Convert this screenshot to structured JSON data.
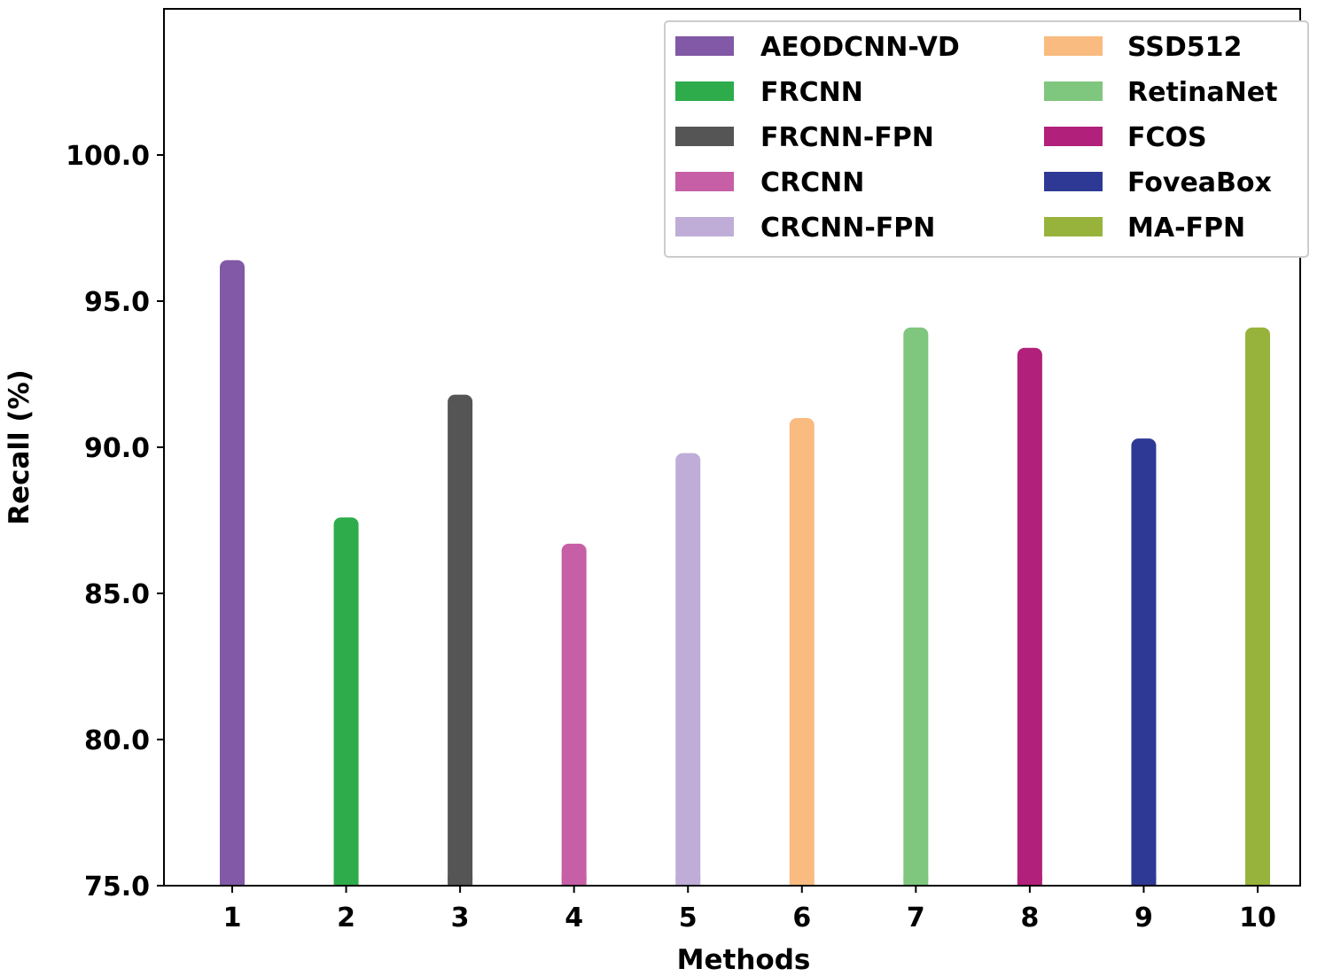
{
  "chart_data": {
    "type": "bar",
    "title": "",
    "xlabel": "Methods",
    "ylabel": "Recall (%)",
    "ylim": [
      75.0,
      105.0
    ],
    "yticks": [
      "75.0",
      "80.0",
      "85.0",
      "90.0",
      "95.0",
      "100.0"
    ],
    "categories": [
      "1",
      "2",
      "3",
      "4",
      "5",
      "6",
      "7",
      "8",
      "9",
      "10"
    ],
    "series": [
      {
        "name": "AEODCNN-VD",
        "color": "#8159a6",
        "values": [
          96.4,
          null,
          null,
          null,
          null,
          null,
          null,
          null,
          null,
          null
        ]
      },
      {
        "name": "FRCNN",
        "color": "#2eac4b",
        "values": [
          null,
          87.6,
          null,
          null,
          null,
          null,
          null,
          null,
          null,
          null
        ]
      },
      {
        "name": "FRCNN-FPN",
        "color": "#555555",
        "values": [
          null,
          null,
          91.8,
          null,
          null,
          null,
          null,
          null,
          null,
          null
        ]
      },
      {
        "name": "CRCNN",
        "color": "#c65fa6",
        "values": [
          null,
          null,
          null,
          86.7,
          null,
          null,
          null,
          null,
          null,
          null
        ]
      },
      {
        "name": "CRCNN-FPN",
        "color": "#bfadd7",
        "values": [
          null,
          null,
          null,
          null,
          89.8,
          null,
          null,
          null,
          null,
          null
        ]
      },
      {
        "name": "SSD512",
        "color": "#f9bb80",
        "values": [
          null,
          null,
          null,
          null,
          null,
          91.0,
          null,
          null,
          null,
          null
        ]
      },
      {
        "name": "RetinaNet",
        "color": "#7fc67e",
        "values": [
          null,
          null,
          null,
          null,
          null,
          null,
          94.1,
          null,
          null,
          null
        ]
      },
      {
        "name": "FCOS",
        "color": "#b1207a",
        "values": [
          null,
          null,
          null,
          null,
          null,
          null,
          null,
          93.4,
          null,
          null
        ]
      },
      {
        "name": "FoveaBox",
        "color": "#2e3995",
        "values": [
          null,
          null,
          null,
          null,
          null,
          null,
          null,
          null,
          90.3,
          null
        ]
      },
      {
        "name": "MA-FPN",
        "color": "#97b33b",
        "values": [
          null,
          null,
          null,
          null,
          null,
          null,
          null,
          null,
          null,
          94.1
        ]
      }
    ],
    "legend_placement": "top-right",
    "grid": false
  }
}
